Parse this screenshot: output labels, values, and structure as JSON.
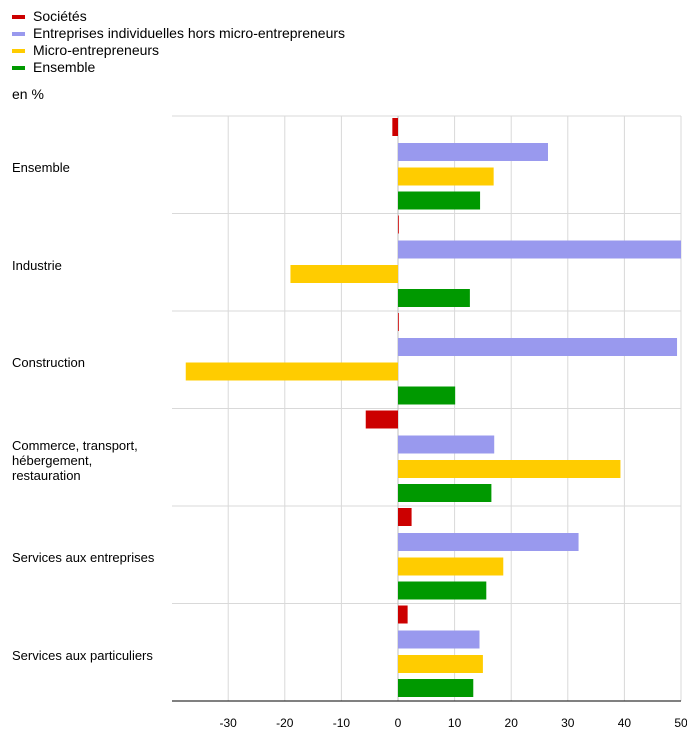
{
  "chart_data": {
    "type": "bar",
    "orientation": "horizontal",
    "unit_label": "en %",
    "categories": [
      "Ensemble",
      "Industrie",
      "Construction",
      "Commerce, transport, hébergement, restauration",
      "Services aux entreprises",
      "Services aux particuliers"
    ],
    "category_label_lines": [
      [
        "Ensemble"
      ],
      [
        "Industrie"
      ],
      [
        "Construction"
      ],
      [
        "Commerce, transport,",
        "hébergement,",
        "restauration"
      ],
      [
        "Services aux entreprises"
      ],
      [
        "Services aux particuliers"
      ]
    ],
    "series": [
      {
        "name": "Sociétés",
        "color": "#cc0000",
        "values": [
          -1.0,
          0.1,
          0.0,
          -5.7,
          2.4,
          1.7
        ]
      },
      {
        "name": "Entreprises individuelles hors micro-entrepreneurs",
        "color": "#9999ee",
        "values": [
          26.5,
          50.0,
          49.3,
          17.0,
          31.9,
          14.4
        ]
      },
      {
        "name": "Micro-entrepreneurs",
        "color": "#ffcc00",
        "values": [
          16.9,
          -19.0,
          -37.5,
          39.3,
          18.6,
          15.0
        ]
      },
      {
        "name": "Ensemble",
        "color": "#009900",
        "values": [
          14.5,
          12.7,
          10.1,
          16.5,
          15.6,
          13.3
        ]
      }
    ],
    "xlim": [
      -40,
      50
    ],
    "xticks": [
      -30,
      -20,
      -10,
      0,
      10,
      20,
      30,
      40,
      50
    ],
    "legend_position": "top-left",
    "grid": true
  }
}
